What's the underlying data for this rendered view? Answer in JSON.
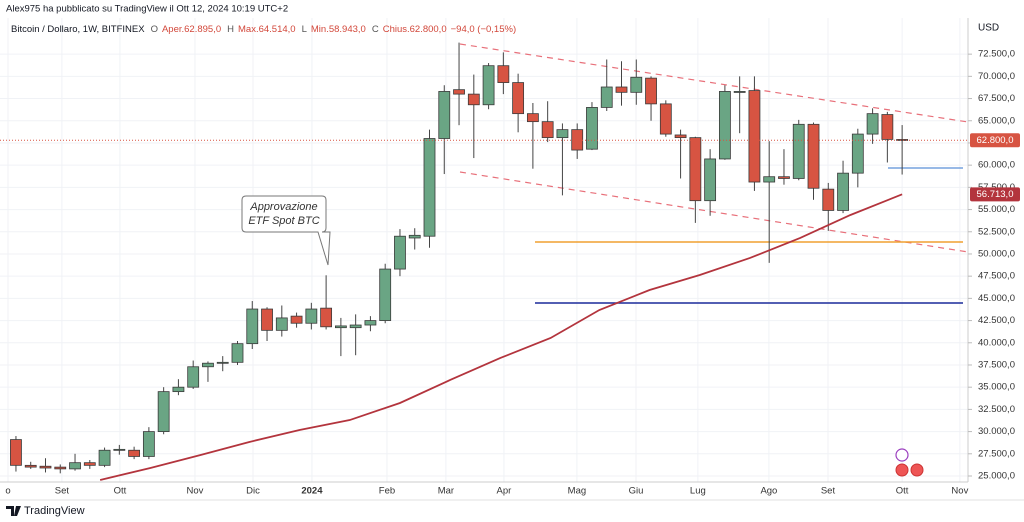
{
  "header": {
    "publisher": "Alex975 ha pubblicato su TradingView il Ott 12, 2024 10:19 UTC+2",
    "symbol": "Bitcoin / Dollaro, 1W, BITFINEX",
    "fields": [
      {
        "key": "O",
        "value": "Aper.62.895,0"
      },
      {
        "key": "H",
        "value": "Max.64.514,0"
      },
      {
        "key": "L",
        "value": "Min.58.943,0"
      },
      {
        "key": "C",
        "value": "Chius.62.800,0"
      }
    ],
    "change": "−94,0 (−0,15%)"
  },
  "chart_data": {
    "type": "candlestick",
    "currency": "USD",
    "up_color": "#6aa584",
    "down_color": "#d75442",
    "x": [
      0,
      1,
      2,
      3,
      4,
      5,
      6,
      7,
      8,
      9,
      10,
      11,
      12,
      13,
      14,
      15,
      16,
      17,
      18,
      19,
      20,
      21,
      22,
      23,
      24,
      25,
      26,
      27,
      28,
      29,
      30,
      31,
      32,
      33,
      34,
      35,
      36,
      37,
      38,
      39,
      40,
      41,
      42,
      43,
      44,
      45,
      46,
      47,
      48,
      49,
      50,
      51,
      52,
      53,
      54,
      55,
      56,
      57,
      58,
      59,
      60
    ],
    "open": [
      29100,
      26200,
      26100,
      26000,
      25800,
      26500,
      26200,
      27900,
      27900,
      27200,
      30000,
      34500,
      35000,
      37300,
      37700,
      37800,
      39900,
      43800,
      41400,
      43000,
      42200,
      43900,
      41700,
      41700,
      42000,
      42500,
      48300,
      51800,
      52000,
      63000,
      68500,
      68000,
      66800,
      71200,
      69300,
      65800,
      64900,
      63100,
      64000,
      61800,
      66500,
      68800,
      68200,
      69800,
      66900,
      63400,
      63100,
      56000,
      60700,
      68200,
      68400,
      58100,
      58700,
      58500,
      64600,
      57300,
      54900,
      59100,
      63500,
      65700,
      62895
    ],
    "high": [
      29500,
      26600,
      27000,
      26300,
      27500,
      26800,
      28200,
      28500,
      28300,
      30500,
      35000,
      35900,
      38000,
      37900,
      38500,
      40200,
      44700,
      44000,
      44200,
      43400,
      44500,
      47600,
      42800,
      43200,
      43000,
      48900,
      52800,
      52900,
      64000,
      69000,
      73800,
      70200,
      71500,
      72700,
      70300,
      67000,
      67200,
      64700,
      64700,
      67100,
      71900,
      71700,
      71900,
      70000,
      67300,
      64000,
      63200,
      61800,
      69000,
      70000,
      70000,
      62700,
      61800,
      65100,
      64800,
      58000,
      60500,
      64100,
      66400,
      66000,
      64514
    ],
    "low": [
      25500,
      25800,
      25400,
      25300,
      25600,
      25800,
      26000,
      27400,
      26900,
      26900,
      29700,
      34100,
      34800,
      35600,
      36800,
      37500,
      39300,
      40200,
      40700,
      41700,
      41500,
      41500,
      38500,
      38600,
      41300,
      42200,
      47500,
      50500,
      50700,
      59000,
      64500,
      60800,
      66300,
      68000,
      63700,
      59600,
      62600,
      56600,
      60700,
      61700,
      66100,
      66700,
      66800,
      65000,
      63200,
      58500,
      53500,
      54300,
      60600,
      63600,
      57100,
      49000,
      57800,
      58300,
      56100,
      52600,
      54600,
      57500,
      62400,
      60300,
      58943
    ],
    "close": [
      26200,
      26000,
      25900,
      25800,
      26500,
      26200,
      27900,
      28000,
      27200,
      30000,
      34500,
      35000,
      37300,
      37700,
      37800,
      39900,
      43800,
      41400,
      42800,
      42200,
      43800,
      41800,
      41900,
      42000,
      42500,
      48300,
      52000,
      52100,
      63000,
      68300,
      68000,
      66800,
      71200,
      69300,
      65800,
      64900,
      63100,
      64000,
      61700,
      66500,
      68800,
      68200,
      69900,
      66900,
      63500,
      63100,
      56000,
      60700,
      68300,
      68300,
      58100,
      58700,
      58500,
      64600,
      57400,
      54900,
      59100,
      63500,
      65800,
      62900,
      62800
    ],
    "close_label": "62.800,0",
    "moving_average": {
      "color": "#b3343d",
      "x": [
        5.7,
        9.1,
        12.5,
        15.8,
        19.2,
        22.6,
        26,
        29.4,
        32.8,
        36.2,
        39.5,
        42.9,
        46.3,
        49.7,
        53.1,
        56.5,
        60
      ],
      "values": [
        24550,
        25900,
        27360,
        28830,
        30180,
        31300,
        33220,
        35810,
        38290,
        40540,
        43690,
        45940,
        47630,
        49550,
        51800,
        54390,
        56713
      ],
      "value_label": "56.713,0"
    },
    "annotation": [
      "Approvazione",
      "ETF Spot BTC"
    ],
    "xlim": [
      -1.08,
      64.46
    ],
    "xticks": [
      {
        "value": -0.54,
        "label": "o"
      },
      {
        "value": 3.11,
        "label": "Set"
      },
      {
        "value": 7.04,
        "label": "Ott"
      },
      {
        "value": 12.12,
        "label": "Nov"
      },
      {
        "value": 16.05,
        "label": "Dic"
      },
      {
        "value": 20.04,
        "label": "2024"
      },
      {
        "value": 25.12,
        "label": "Feb"
      },
      {
        "value": 29.11,
        "label": "Mar"
      },
      {
        "value": 33.04,
        "label": "Apr"
      },
      {
        "value": 37.98,
        "label": "Mag"
      },
      {
        "value": 41.98,
        "label": "Giu"
      },
      {
        "value": 46.17,
        "label": "Lug"
      },
      {
        "value": 50.98,
        "label": "Ago"
      },
      {
        "value": 54.98,
        "label": "Set"
      },
      {
        "value": 60,
        "label": "Ott"
      },
      {
        "value": 63.91,
        "label": "Nov"
      }
    ],
    "ylim": [
      24324,
      76570
    ],
    "yticks": [
      {
        "value": 25000,
        "label": "25.000,0"
      },
      {
        "value": 27500,
        "label": "27.500,0"
      },
      {
        "value": 30000,
        "label": "30.000,0"
      },
      {
        "value": 32500,
        "label": "32.500,0"
      },
      {
        "value": 35000,
        "label": "35.000,0"
      },
      {
        "value": 37500,
        "label": "37.500,0"
      },
      {
        "value": 40000,
        "label": "40.000,0"
      },
      {
        "value": 42500,
        "label": "42.500,0"
      },
      {
        "value": 45000,
        "label": "45.000,0"
      },
      {
        "value": 47500,
        "label": "47.500,0"
      },
      {
        "value": 50000,
        "label": "50.000,0"
      },
      {
        "value": 52500,
        "label": "52.500,0"
      },
      {
        "value": 55000,
        "label": "55.000,0"
      },
      {
        "value": 57500,
        "label": "57.500,0"
      },
      {
        "value": 60000,
        "label": "60.000,0"
      },
      {
        "value": 62500,
        "label": "62.500,0"
      },
      {
        "value": 65000,
        "label": "65.000,0"
      },
      {
        "value": 67500,
        "label": "67.500,0"
      },
      {
        "value": 70000,
        "label": "70.000,0"
      },
      {
        "value": 72500,
        "label": "72.500,0"
      }
    ],
    "grid": true
  },
  "footer": {
    "brand": "TradingView"
  }
}
